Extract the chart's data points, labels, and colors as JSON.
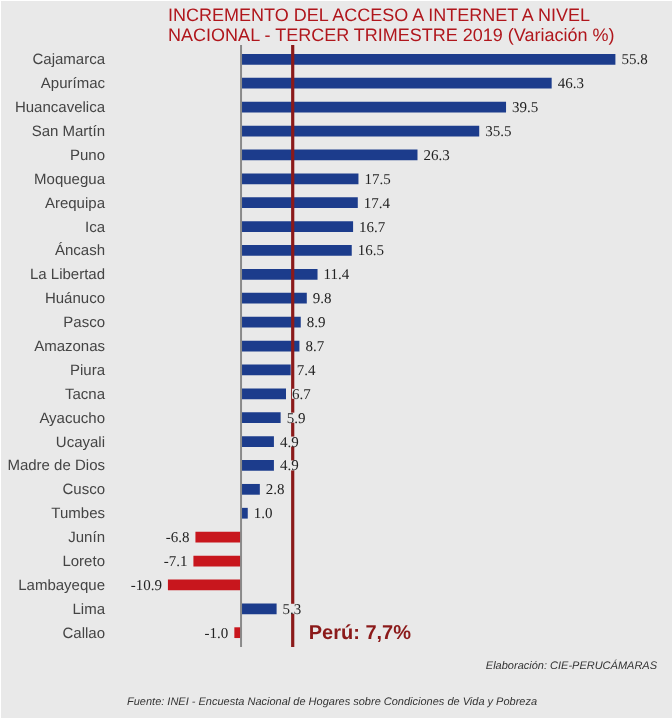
{
  "chart_data": {
    "type": "bar",
    "orientation": "horizontal",
    "title": "INCREMENTO DEL ACCESO A INTERNET A NIVEL\nNACIONAL - TERCER TRIMESTRE 2019 (Variación %)",
    "categories": [
      "Cajamarca",
      "Apurímac",
      "Huancavelica",
      "San Martín",
      "Puno",
      "Moquegua",
      "Arequipa",
      "Ica",
      "Áncash",
      "La Libertad",
      "Huánuco",
      "Pasco",
      "Amazonas",
      "Piura",
      "Tacna",
      "Ayacucho",
      "Ucayali",
      "Madre de Dios",
      "Cusco",
      "Tumbes",
      "Junín",
      "Loreto",
      "Lambayeque",
      "Lima",
      "Callao"
    ],
    "values": [
      55.8,
      46.3,
      39.5,
      35.5,
      26.3,
      17.5,
      17.4,
      16.7,
      16.5,
      11.4,
      9.8,
      8.9,
      8.7,
      7.4,
      6.7,
      5.9,
      4.9,
      4.9,
      2.8,
      1.0,
      -6.8,
      -7.1,
      -10.9,
      5.3,
      -1.0
    ],
    "colors": [
      "#1c3c8c",
      "#1c3c8c",
      "#1c3c8c",
      "#1c3c8c",
      "#1c3c8c",
      "#1c3c8c",
      "#1c3c8c",
      "#1c3c8c",
      "#1c3c8c",
      "#1c3c8c",
      "#1c3c8c",
      "#1c3c8c",
      "#1c3c8c",
      "#1c3c8c",
      "#1c3c8c",
      "#1c3c8c",
      "#1c3c8c",
      "#1c3c8c",
      "#1c3c8c",
      "#1c3c8c",
      "#c8161d",
      "#c8161d",
      "#c8161d",
      "#1c3c8c",
      "#c8161d"
    ],
    "xlim": [
      -17,
      62
    ],
    "value_labels": [
      "55.8",
      "46.3",
      "39.5",
      "35.5",
      "26.3",
      "17.5",
      "17.4",
      "16.7",
      "16.5",
      "11.4",
      "9.8",
      "8.9",
      "8.7",
      "7.4",
      "6.7",
      "5.9",
      "4.9",
      "4.9",
      "2.8",
      "1.0",
      "-6.8",
      "-7.1",
      "-10.9",
      "5.3",
      "-1.0"
    ],
    "ref_lines": [
      {
        "axis": "x",
        "value": 7.7,
        "label": "Perú: 7,7%",
        "color": "#8b1a1a"
      }
    ],
    "annotations": [
      "Fuente: INEI - Encuesta Nacional de Hogares sobre Condiciones de Vida y Pobreza",
      "Elaboración: CIE-PERUCÁMARAS"
    ]
  }
}
